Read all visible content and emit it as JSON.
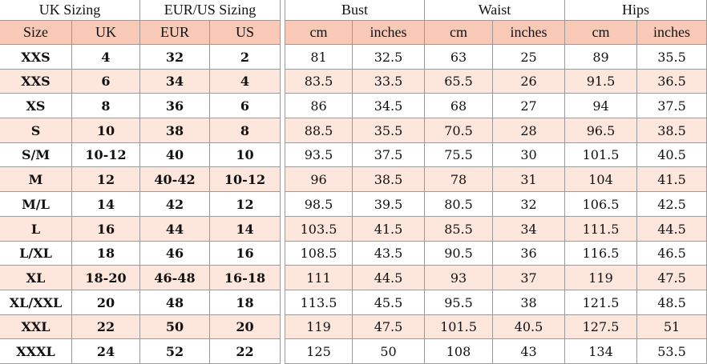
{
  "left": {
    "groups": [
      "UK Sizing",
      "EUR/US Sizing"
    ],
    "columns": [
      "Size",
      "UK",
      "EUR",
      "US"
    ],
    "rows": [
      [
        "XXS",
        "4",
        "32",
        "2"
      ],
      [
        "XXS",
        "6",
        "34",
        "4"
      ],
      [
        "XS",
        "8",
        "36",
        "6"
      ],
      [
        "S",
        "10",
        "38",
        "8"
      ],
      [
        "S/M",
        "10-12",
        "40",
        "10"
      ],
      [
        "M",
        "12",
        "40-42",
        "10-12"
      ],
      [
        "M/L",
        "14",
        "42",
        "12"
      ],
      [
        "L",
        "16",
        "44",
        "14"
      ],
      [
        "L/XL",
        "18",
        "46",
        "16"
      ],
      [
        "XL",
        "18-20",
        "46-48",
        "16-18"
      ],
      [
        "XL/XXL",
        "20",
        "48",
        "18"
      ],
      [
        "XXL",
        "22",
        "50",
        "20"
      ],
      [
        "XXXL",
        "24",
        "52",
        "22"
      ]
    ]
  },
  "right": {
    "groups": [
      "Bust",
      "Waist",
      "Hips"
    ],
    "columns": [
      "cm",
      "inches",
      "cm",
      "inches",
      "cm",
      "inches"
    ],
    "rows": [
      [
        "81",
        "32.5",
        "63",
        "25",
        "89",
        "35.5"
      ],
      [
        "83.5",
        "33.5",
        "65.5",
        "26",
        "91.5",
        "36.5"
      ],
      [
        "86",
        "34.5",
        "68",
        "27",
        "94",
        "37.5"
      ],
      [
        "88.5",
        "35.5",
        "70.5",
        "28",
        "96.5",
        "38.5"
      ],
      [
        "93.5",
        "37.5",
        "75.5",
        "30",
        "101.5",
        "40.5"
      ],
      [
        "96",
        "38.5",
        "78",
        "31",
        "104",
        "41.5"
      ],
      [
        "98.5",
        "39.5",
        "80.5",
        "32",
        "106.5",
        "42.5"
      ],
      [
        "103.5",
        "41.5",
        "85.5",
        "34",
        "111.5",
        "44.5"
      ],
      [
        "108.5",
        "43.5",
        "90.5",
        "36",
        "116.5",
        "46.5"
      ],
      [
        "111",
        "44.5",
        "93",
        "37",
        "119",
        "47.5"
      ],
      [
        "113.5",
        "45.5",
        "95.5",
        "38",
        "121.5",
        "48.5"
      ],
      [
        "119",
        "47.5",
        "101.5",
        "40.5",
        "127.5",
        "51"
      ],
      [
        "125",
        "50",
        "108",
        "43",
        "134",
        "53.5"
      ]
    ]
  }
}
